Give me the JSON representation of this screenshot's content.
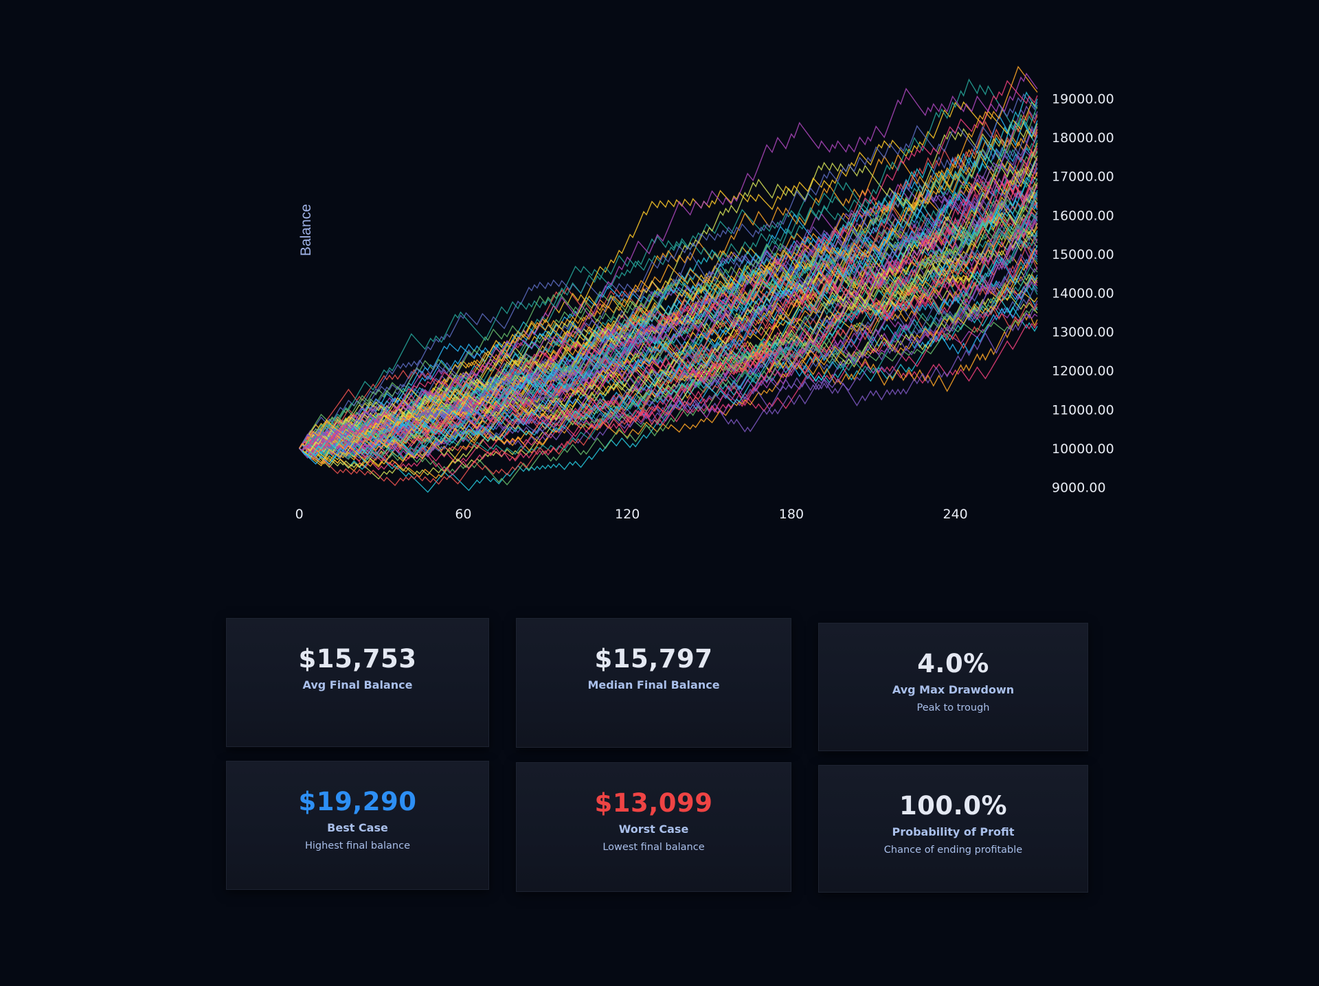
{
  "chart_data": {
    "type": "line",
    "ylabel": "Balance",
    "xlabel": "",
    "x_ticks": [
      0,
      60,
      120,
      180,
      240
    ],
    "y_ticks": [
      9000,
      10000,
      11000,
      12000,
      13000,
      14000,
      15000,
      16000,
      17000,
      18000,
      19000
    ],
    "y_tick_labels": [
      "9000.00",
      "10000.00",
      "11000.00",
      "12000.00",
      "13000.00",
      "14000.00",
      "15000.00",
      "16000.00",
      "17000.00",
      "18000.00",
      "19000.00"
    ],
    "xlim": [
      -14,
      270
    ],
    "ylim": [
      8850,
      19450
    ],
    "y_axis_position": "right",
    "grid": false,
    "legend": "none",
    "series_count": 100,
    "steps": 270,
    "start_balance": 10000,
    "final_balance_range": [
      13099,
      19290
    ],
    "colors": [
      "#26c6da",
      "#ec407a",
      "#ffa726",
      "#ab47bc",
      "#d4e157",
      "#29b6f6",
      "#66bb6a",
      "#ef5350",
      "#7e57c2",
      "#ffca28",
      "#26a69a",
      "#5c6bc0"
    ]
  },
  "stats": {
    "avg_final": {
      "value": "$15,753",
      "label": "Avg Final Balance"
    },
    "median_final": {
      "value": "$15,797",
      "label": "Median Final Balance"
    },
    "avg_drawdown": {
      "value": "4.0%",
      "label": "Avg Max Drawdown",
      "sub": "Peak to trough"
    },
    "best_case": {
      "value": "$19,290",
      "label": "Best Case",
      "sub": "Highest final balance",
      "color": "#2d8ff5"
    },
    "worst_case": {
      "value": "$13,099",
      "label": "Worst Case",
      "sub": "Lowest final balance",
      "color": "#ef4444"
    },
    "prob_profit": {
      "value": "100.0%",
      "label": "Probability of Profit",
      "sub": "Chance of ending profitable"
    }
  }
}
